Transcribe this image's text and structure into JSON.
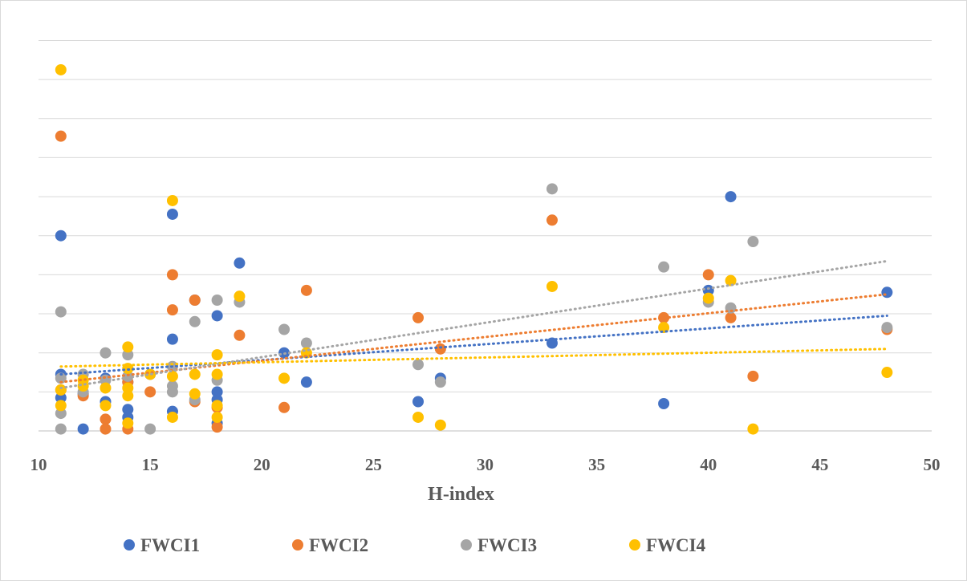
{
  "chart_data": {
    "type": "scatter",
    "title": "",
    "xlabel": "H-index",
    "ylabel": "",
    "xlim": [
      10,
      50
    ],
    "ylim": [
      0,
      10.4
    ],
    "x_ticks": [
      "10",
      "15",
      "20",
      "25",
      "30",
      "35",
      "40",
      "45",
      "50"
    ],
    "grid": true,
    "legend_position": "bottom",
    "trendlines": "linear, dotted",
    "series": [
      {
        "name": "FWCI1",
        "color": "#4472c4",
        "points": [
          [
            11,
            5.0
          ],
          [
            11,
            1.45
          ],
          [
            11,
            0.85
          ],
          [
            12,
            0.05
          ],
          [
            12,
            0.95
          ],
          [
            13,
            1.35
          ],
          [
            13,
            0.75
          ],
          [
            14,
            0.55
          ],
          [
            14,
            0.35
          ],
          [
            14,
            1.25
          ],
          [
            15,
            1.45
          ],
          [
            16,
            5.55
          ],
          [
            16,
            2.35
          ],
          [
            16,
            0.5
          ],
          [
            17,
            3.35
          ],
          [
            18,
            2.95
          ],
          [
            18,
            1.0
          ],
          [
            18,
            0.8
          ],
          [
            18,
            0.2
          ],
          [
            19,
            4.3
          ],
          [
            21,
            2.0
          ],
          [
            22,
            1.25
          ],
          [
            27,
            0.75
          ],
          [
            28,
            1.35
          ],
          [
            33,
            2.25
          ],
          [
            38,
            0.7
          ],
          [
            40,
            3.6
          ],
          [
            41,
            6.0
          ],
          [
            48,
            3.55
          ]
        ],
        "trend": [
          [
            11,
            1.45
          ],
          [
            48,
            2.95
          ]
        ]
      },
      {
        "name": "FWCI2",
        "color": "#ed7d31",
        "points": [
          [
            11,
            7.55
          ],
          [
            11,
            1.05
          ],
          [
            12,
            0.9
          ],
          [
            13,
            0.3
          ],
          [
            13,
            0.05
          ],
          [
            14,
            0.05
          ],
          [
            14,
            1.25
          ],
          [
            15,
            1.0
          ],
          [
            16,
            4.0
          ],
          [
            16,
            3.1
          ],
          [
            17,
            3.35
          ],
          [
            17,
            0.75
          ],
          [
            18,
            0.6
          ],
          [
            18,
            0.1
          ],
          [
            19,
            2.45
          ],
          [
            21,
            0.6
          ],
          [
            22,
            3.6
          ],
          [
            27,
            2.9
          ],
          [
            28,
            2.1
          ],
          [
            33,
            5.4
          ],
          [
            38,
            2.9
          ],
          [
            40,
            4.0
          ],
          [
            41,
            2.9
          ],
          [
            42,
            1.4
          ],
          [
            48,
            2.6
          ]
        ],
        "trend": [
          [
            11,
            1.25
          ],
          [
            48,
            3.5
          ]
        ]
      },
      {
        "name": "FWCI3",
        "color": "#a5a5a5",
        "points": [
          [
            11,
            3.05
          ],
          [
            11,
            1.35
          ],
          [
            11,
            0.45
          ],
          [
            11,
            0.05
          ],
          [
            12,
            1.45
          ],
          [
            12,
            1.0
          ],
          [
            13,
            2.0
          ],
          [
            13,
            1.3
          ],
          [
            14,
            1.95
          ],
          [
            14,
            1.4
          ],
          [
            15,
            0.05
          ],
          [
            16,
            1.65
          ],
          [
            16,
            1.15
          ],
          [
            16,
            1.0
          ],
          [
            17,
            2.8
          ],
          [
            17,
            0.8
          ],
          [
            18,
            3.35
          ],
          [
            18,
            1.3
          ],
          [
            19,
            3.3
          ],
          [
            21,
            2.6
          ],
          [
            22,
            2.25
          ],
          [
            27,
            1.7
          ],
          [
            28,
            1.25
          ],
          [
            33,
            6.2
          ],
          [
            38,
            4.2
          ],
          [
            40,
            3.3
          ],
          [
            41,
            3.15
          ],
          [
            42,
            4.85
          ],
          [
            48,
            2.65
          ]
        ],
        "trend": [
          [
            11,
            1.1
          ],
          [
            48,
            4.35
          ]
        ]
      },
      {
        "name": "FWCI4",
        "color": "#ffc000",
        "points": [
          [
            11,
            9.25
          ],
          [
            11,
            1.05
          ],
          [
            11,
            0.65
          ],
          [
            12,
            1.3
          ],
          [
            12,
            1.15
          ],
          [
            13,
            1.1
          ],
          [
            13,
            0.65
          ],
          [
            14,
            2.15
          ],
          [
            14,
            1.6
          ],
          [
            14,
            1.1
          ],
          [
            14,
            0.9
          ],
          [
            14,
            0.2
          ],
          [
            15,
            1.45
          ],
          [
            16,
            5.9
          ],
          [
            16,
            1.4
          ],
          [
            16,
            0.35
          ],
          [
            17,
            1.45
          ],
          [
            17,
            0.95
          ],
          [
            18,
            1.95
          ],
          [
            18,
            1.45
          ],
          [
            18,
            0.65
          ],
          [
            18,
            0.35
          ],
          [
            19,
            3.45
          ],
          [
            21,
            1.35
          ],
          [
            22,
            2.0
          ],
          [
            27,
            0.35
          ],
          [
            28,
            0.15
          ],
          [
            33,
            3.7
          ],
          [
            38,
            2.65
          ],
          [
            40,
            3.4
          ],
          [
            41,
            3.85
          ],
          [
            42,
            0.05
          ],
          [
            48,
            1.5
          ]
        ],
        "trend": [
          [
            11,
            1.65
          ],
          [
            48,
            2.1
          ]
        ]
      }
    ]
  }
}
